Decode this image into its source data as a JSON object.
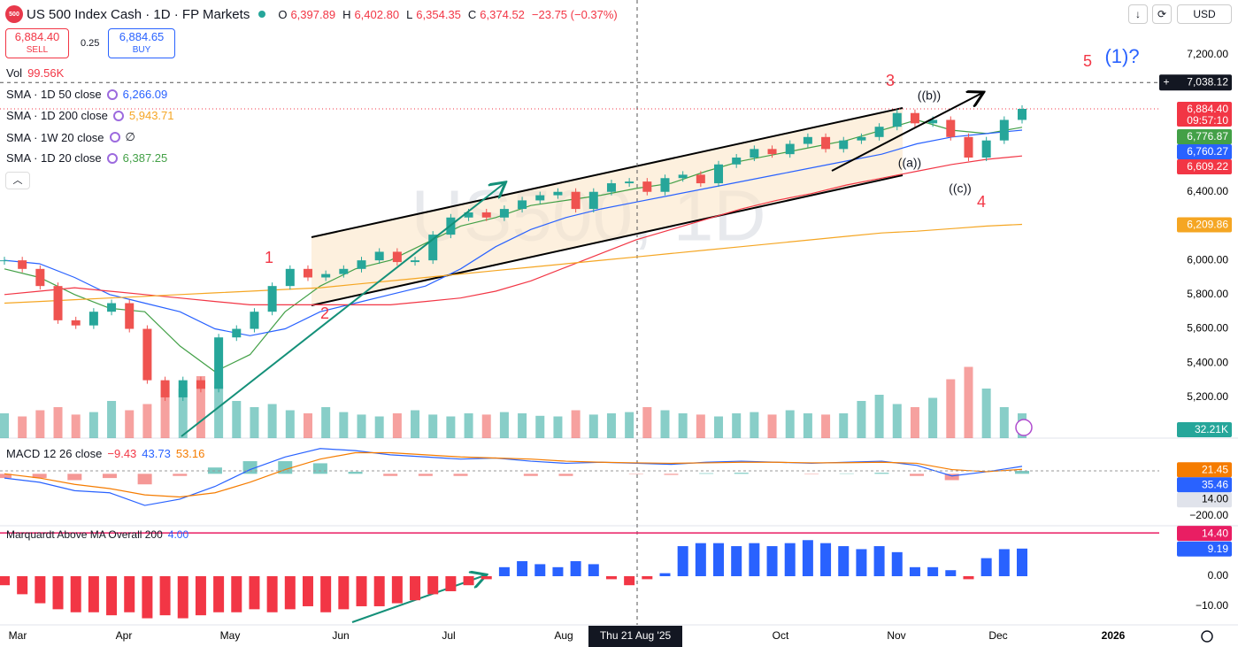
{
  "header": {
    "title": "US 500 Index Cash · 1D · FP Markets",
    "open_label": "O",
    "open": "6,397.89",
    "high_label": "H",
    "high": "6,402.80",
    "low_label": "L",
    "low": "6,354.35",
    "close_label": "C",
    "close": "6,374.52",
    "change": "−23.75 (−0.37%)",
    "currency": "USD",
    "sell_price": "6,884.40",
    "sell": "SELL",
    "spread": "0.25",
    "buy_price": "6,884.65",
    "buy": "BUY"
  },
  "legend": {
    "vol_name": "Vol",
    "vol_value": "99.56K",
    "sma": [
      {
        "name": "SMA · 1D 50 close",
        "value": "6,266.09",
        "color": "#2962ff"
      },
      {
        "name": "SMA · 1D 200 close",
        "value": "5,943.71",
        "color": "#f5a623"
      },
      {
        "name": "SMA · 1W 20 close",
        "value": "∅",
        "color": "#131722"
      },
      {
        "name": "SMA · 1D 20 close",
        "value": "6,387.25",
        "color": "#43a047"
      }
    ],
    "macd_name": "MACD 12 26 close",
    "macd_values": [
      "−9.43",
      "43.73",
      "53.16"
    ],
    "marq_name": "Marquardt Above MA Overall 200",
    "marq_value": "4.00"
  },
  "chart_data": [
    {
      "type": "candlestick",
      "watermark": "US500, 1D",
      "ylim": [
        4962,
        7520
      ],
      "yticks": [
        {
          "value": 7200,
          "label": "7,200.00"
        },
        {
          "value": 6400,
          "label": "6,400.00"
        },
        {
          "value": 6000,
          "label": "6,000.00"
        },
        {
          "value": 5800,
          "label": "5,800.00"
        },
        {
          "value": 5600,
          "label": "5,600.00"
        },
        {
          "value": 5400,
          "label": "5,400.00"
        },
        {
          "value": 5200,
          "label": "5,200.00"
        }
      ],
      "crosshair": {
        "value": 7038.12,
        "label": "7,038.12"
      },
      "badges": [
        {
          "value": 6884.4,
          "label": "6,884.40",
          "sub": "09:57:10",
          "color": "#f23645"
        },
        {
          "value": 6776.87,
          "label": "6,776.87",
          "color": "#43a047"
        },
        {
          "value": 6760.27,
          "label": "6,760.27",
          "color": "#2962ff"
        },
        {
          "value": 6609.22,
          "label": "6,609.22",
          "color": "#f23645"
        },
        {
          "value": 6209.86,
          "label": "6,209.86",
          "color": "#f5a623"
        }
      ],
      "closes": [
        6000,
        5950,
        5850,
        5650,
        5620,
        5700,
        5750,
        5600,
        5300,
        5200,
        5300,
        5250,
        5550,
        5600,
        5700,
        5850,
        5950,
        5900,
        5920,
        5950,
        6000,
        6050,
        5990,
        6000,
        6150,
        6250,
        6280,
        6250,
        6300,
        6350,
        6380,
        6400,
        6300,
        6400,
        6450,
        6460,
        6400,
        6480,
        6500,
        6450,
        6560,
        6600,
        6650,
        6620,
        6680,
        6720,
        6650,
        6700,
        6720,
        6780,
        6860,
        6800,
        6820,
        6720,
        6600,
        6700,
        6820,
        6884.4
      ],
      "up_color": "#26a69a",
      "down_color": "#ef5350",
      "series": [
        {
          "name": "SMA 20",
          "color": "#43a047",
          "values": [
            5950,
            5900,
            5800,
            5720,
            5700,
            5500,
            5350,
            5450,
            5700,
            5850,
            5950,
            6000,
            6100,
            6200,
            6250,
            6320,
            6350,
            6380,
            6420,
            6450,
            6520,
            6580,
            6620,
            6660,
            6700,
            6760,
            6820,
            6760,
            6740,
            6776.87
          ]
        },
        {
          "name": "SMA 50",
          "color": "#2962ff",
          "values": [
            6000,
            5980,
            5900,
            5800,
            5750,
            5700,
            5600,
            5560,
            5600,
            5700,
            5750,
            5800,
            5850,
            5950,
            6080,
            6180,
            6250,
            6300,
            6340,
            6380,
            6420,
            6460,
            6500,
            6540,
            6580,
            6620,
            6680,
            6720,
            6740,
            6760.27
          ]
        },
        {
          "name": "SMA 1W 20",
          "color": "#f23645",
          "values": [
            5800,
            5820,
            5840,
            5820,
            5800,
            5780,
            5760,
            5740,
            5740,
            5740,
            5740,
            5740,
            5760,
            5780,
            5820,
            5880,
            5960,
            6040,
            6120,
            6180,
            6240,
            6300,
            6350,
            6390,
            6440,
            6480,
            6520,
            6560,
            6590,
            6609.22
          ]
        },
        {
          "name": "SMA 200",
          "color": "#f5a623",
          "values": [
            5750,
            5760,
            5770,
            5780,
            5790,
            5800,
            5810,
            5820,
            5830,
            5840,
            5860,
            5880,
            5900,
            5920,
            5940,
            5960,
            5980,
            6000,
            6020,
            6040,
            6060,
            6080,
            6100,
            6120,
            6140,
            6160,
            6170,
            6185,
            6200,
            6209.86
          ]
        }
      ],
      "annotations": [
        {
          "text": "1",
          "color": "#f23645"
        },
        {
          "text": "2",
          "color": "#f23645"
        },
        {
          "text": "3",
          "color": "#f23645"
        },
        {
          "text": "4",
          "color": "#f23645"
        },
        {
          "text": "5",
          "color": "#f23645"
        },
        {
          "text": "(1)?",
          "color": "#2962ff"
        },
        {
          "text": "((a))",
          "color": "#131722"
        },
        {
          "text": "((b))",
          "color": "#131722"
        },
        {
          "text": "((c))",
          "color": "#131722"
        }
      ]
    },
    {
      "type": "bar",
      "name": "volume",
      "ylim": [
        0,
        160
      ],
      "values": [
        40,
        35,
        45,
        50,
        38,
        42,
        60,
        45,
        55,
        90,
        80,
        100,
        85,
        60,
        50,
        55,
        45,
        40,
        50,
        42,
        38,
        35,
        40,
        45,
        38,
        35,
        40,
        38,
        42,
        40,
        36,
        35,
        45,
        38,
        40,
        42,
        50,
        45,
        40,
        38,
        35,
        40,
        42,
        38,
        45,
        40,
        38,
        40,
        60,
        70,
        55,
        50,
        65,
        95,
        115,
        80,
        50,
        40
      ],
      "badge": "32.21K"
    },
    {
      "type": "line",
      "name": "macd",
      "ylim": [
        -238,
        161
      ],
      "series": [
        {
          "name": "MACD",
          "color": "#2962ff",
          "values": [
            -20,
            -40,
            -80,
            -90,
            -150,
            -120,
            -60,
            20,
            80,
            120,
            110,
            90,
            80,
            70,
            75,
            60,
            50,
            55,
            50,
            45,
            55,
            60,
            55,
            50,
            55,
            60,
            40,
            -10,
            10,
            35.46
          ]
        },
        {
          "name": "Signal",
          "color": "#f57c00",
          "values": [
            0,
            -20,
            -50,
            -70,
            -100,
            -110,
            -90,
            -40,
            20,
            70,
            100,
            100,
            90,
            80,
            75,
            70,
            60,
            55,
            52,
            50,
            52,
            55,
            55,
            52,
            53,
            55,
            50,
            20,
            10,
            21.45
          ]
        }
      ],
      "histogram": [
        -20,
        -20,
        -30,
        -20,
        -50,
        -10,
        30,
        60,
        60,
        50,
        10,
        -10,
        -10,
        -10,
        0,
        -10,
        -10,
        0,
        -2,
        -5,
        3,
        5,
        0,
        -2,
        2,
        5,
        -10,
        -30,
        0,
        14
      ],
      "yticks": [
        {
          "value": 14,
          "label": "14.00"
        },
        {
          "value": -200,
          "label": "−200.00"
        }
      ]
    },
    {
      "type": "bar",
      "name": "marquardt",
      "ylim": [
        -15.9,
        16.2
      ],
      "pos_color": "#2962ff",
      "neg_color": "#f23645",
      "values": [
        -3,
        -6,
        -9,
        -11,
        -12,
        -12,
        -13,
        -12,
        -14,
        -13,
        -14,
        -13,
        -12,
        -12,
        -11,
        -12,
        -11,
        -10,
        -12,
        -11,
        -10,
        -10,
        -9,
        -8,
        -6,
        -5,
        -3,
        -1,
        3,
        5,
        4,
        3,
        5,
        4,
        -1,
        -3,
        -1,
        1,
        10,
        11,
        11,
        10,
        11,
        10,
        11,
        12,
        11,
        10,
        9,
        10,
        8,
        3,
        3,
        2,
        -1,
        6,
        9,
        9.19
      ],
      "level": {
        "value": 14.4,
        "label": "14.40"
      },
      "yticks": [
        {
          "value": 0,
          "label": "0.00"
        },
        {
          "value": -10,
          "label": "−10.00"
        }
      ]
    }
  ],
  "time_axis": {
    "months": [
      "Mar",
      "Apr",
      "May",
      "Jun",
      "Jul",
      "Aug",
      "Oct",
      "Nov",
      "Dec"
    ],
    "year": "2026",
    "crosshair": "Thu 21 Aug '25"
  }
}
